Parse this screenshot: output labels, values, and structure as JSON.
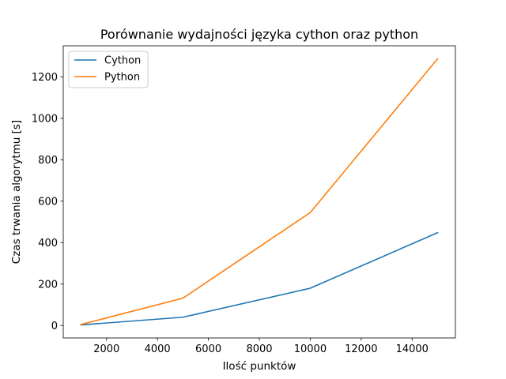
{
  "chart_data": {
    "type": "line",
    "title": "Porównanie wydajności języka cython oraz python",
    "xlabel": "Ilość punktów",
    "ylabel": "Czas trwania algorytmu [s]",
    "xlim": [
      300,
      15700
    ],
    "ylim": [
      -60,
      1350
    ],
    "xticks": [
      2000,
      4000,
      6000,
      8000,
      10000,
      12000,
      14000
    ],
    "yticks": [
      0,
      200,
      400,
      600,
      800,
      1000,
      1200
    ],
    "legend": "top-left",
    "grid": false,
    "x": [
      1000,
      5000,
      10000,
      15000
    ],
    "series": [
      {
        "name": "Cython",
        "color": "#1f77b4",
        "values": [
          3,
          40,
          180,
          448
        ]
      },
      {
        "name": "Python",
        "color": "#ff7f0e",
        "values": [
          5,
          132,
          545,
          1287
        ]
      }
    ]
  }
}
